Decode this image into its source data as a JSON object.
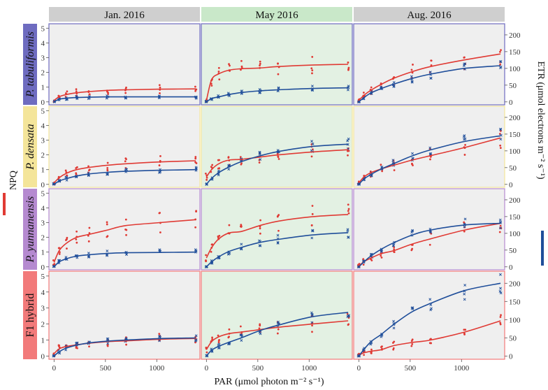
{
  "chart_data": {
    "type": "scatter",
    "title": "",
    "xlabel": "PAR (μmol photon m⁻² s⁻¹)",
    "ylabel_left": "NPQ",
    "ylabel_right": "ETR (μmol electrons m⁻² s⁻¹)",
    "xlim": [
      -50,
      1420
    ],
    "ylim_left": [
      -0.2,
      5.3
    ],
    "ylim_right": [
      -8.8,
      233.2
    ],
    "x_ticks": [
      0,
      500,
      1000
    ],
    "y_ticks_left": [
      0,
      1,
      2,
      3,
      4,
      5
    ],
    "y_ticks_right": [
      0,
      50,
      100,
      150,
      200
    ],
    "columns": [
      "Jan. 2016",
      "May 2016",
      "Aug. 2016"
    ],
    "rows": [
      "P. tabuliformis",
      "P. densata",
      "P. yunnanensis",
      "F1 hybrid"
    ],
    "colors": {
      "npq": "#e03a34",
      "etr": "#1f4e9a",
      "panel_bg": "#efefef",
      "panel_bg_may": "#e3f1e3",
      "strip_bg": "#cfcfcf",
      "strip_bg_may": "#c9e8c9",
      "row_tabuliformis": "#6e6cc0",
      "row_densata": "#f4e59a",
      "row_yunnanensis": "#b58ad0",
      "row_f1": "#f27a7a"
    },
    "par_levels": [
      0,
      50,
      120,
      220,
      340,
      520,
      700,
      1030,
      1380
    ],
    "series": [
      {
        "row": "P. tabuliformis",
        "column": "Jan. 2016",
        "npq": [
          0.1,
          0.35,
          0.5,
          0.62,
          0.7,
          0.78,
          0.82,
          0.86,
          0.88
        ],
        "etr": [
          0,
          8,
          11,
          13,
          14,
          15,
          15,
          15,
          15
        ]
      },
      {
        "row": "P. tabuliformis",
        "column": "May 2016",
        "npq": [
          0.1,
          1.5,
          1.9,
          2.15,
          2.25,
          2.3,
          2.4,
          2.5,
          2.55
        ],
        "etr": [
          0,
          10,
          15,
          22,
          28,
          33,
          36,
          40,
          42
        ]
      },
      {
        "row": "P. tabuliformis",
        "column": "Aug. 2016",
        "npq": [
          0.1,
          0.45,
          0.8,
          1.2,
          1.6,
          2.05,
          2.4,
          2.85,
          3.25
        ],
        "etr": [
          0,
          13,
          27,
          40,
          53,
          70,
          83,
          100,
          108
        ]
      },
      {
        "row": "P. densata",
        "column": "Jan. 2016",
        "npq": [
          0.1,
          0.45,
          0.75,
          1.0,
          1.15,
          1.3,
          1.4,
          1.52,
          1.6
        ],
        "etr": [
          0,
          10,
          17,
          25,
          31,
          36,
          39,
          42,
          44
        ]
      },
      {
        "row": "P. densata",
        "column": "May 2016",
        "npq": [
          0.5,
          1.0,
          1.4,
          1.65,
          1.7,
          1.85,
          2.0,
          2.2,
          2.35
        ],
        "etr": [
          0,
          18,
          35,
          52,
          68,
          85,
          98,
          113,
          120
        ]
      },
      {
        "row": "P. densata",
        "column": "Aug. 2016",
        "npq": [
          0.1,
          0.5,
          0.8,
          1.05,
          1.3,
          1.65,
          1.95,
          2.5,
          3.15
        ],
        "etr": [
          0,
          16,
          30,
          46,
          62,
          85,
          103,
          128,
          145
        ]
      },
      {
        "row": "P. yunnanensis",
        "column": "Jan. 2016",
        "npq": [
          0.3,
          1.1,
          1.6,
          2.0,
          2.2,
          2.5,
          2.8,
          3.0,
          3.2
        ],
        "etr": [
          0,
          15,
          24,
          32,
          36,
          40,
          42,
          43,
          44
        ]
      },
      {
        "row": "P. yunnanensis",
        "column": "May 2016",
        "npq": [
          0.6,
          1.3,
          1.9,
          2.3,
          2.4,
          2.8,
          3.1,
          3.4,
          3.55
        ],
        "etr": [
          0,
          15,
          30,
          46,
          58,
          73,
          82,
          95,
          102
        ]
      },
      {
        "row": "P. yunnanensis",
        "column": "Aug. 2016",
        "npq": [
          0.05,
          0.35,
          0.6,
          0.9,
          1.1,
          1.55,
          1.9,
          2.5,
          2.95
        ],
        "etr": [
          0,
          15,
          33,
          53,
          72,
          95,
          110,
          125,
          130
        ]
      },
      {
        "row": "F1 hybrid",
        "column": "Jan. 2016",
        "npq": [
          0.15,
          0.45,
          0.6,
          0.7,
          0.8,
          0.9,
          0.95,
          1.05,
          1.1
        ],
        "etr": [
          0,
          12,
          22,
          30,
          36,
          41,
          44,
          48,
          50
        ]
      },
      {
        "row": "F1 hybrid",
        "column": "May 2016",
        "npq": [
          0.4,
          0.9,
          1.2,
          1.4,
          1.5,
          1.65,
          1.8,
          2.0,
          2.2
        ],
        "etr": [
          0,
          16,
          27,
          38,
          50,
          70,
          85,
          108,
          120
        ]
      },
      {
        "row": "F1 hybrid",
        "column": "Aug. 2016",
        "npq": [
          0.05,
          0.2,
          0.3,
          0.4,
          0.65,
          0.85,
          1.0,
          1.5,
          2.2
        ],
        "etr": [
          0,
          18,
          40,
          60,
          87,
          122,
          145,
          180,
          200
        ]
      }
    ]
  }
}
